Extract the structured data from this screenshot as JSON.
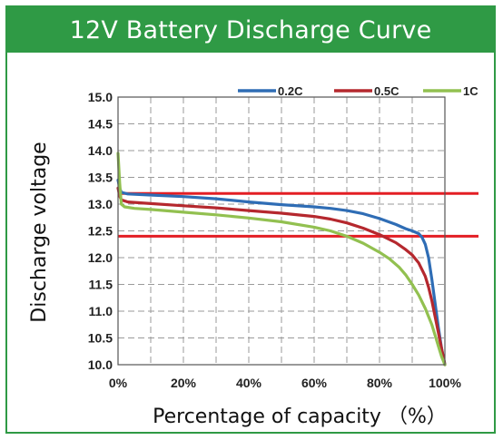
{
  "chart_data": {
    "type": "line",
    "title": "12V Battery Discharge Curve",
    "xlabel": "Percentage of capacity （%）",
    "ylabel": "Discharge voltage",
    "xlim": [
      0,
      100
    ],
    "ylim": [
      10.0,
      15.0
    ],
    "x_ticks": [
      "0%",
      "20%",
      "40%",
      "60%",
      "80%",
      "100%"
    ],
    "x_tick_values": [
      0,
      20,
      40,
      60,
      80,
      100
    ],
    "y_ticks": [
      "15.0",
      "14.5",
      "14.0",
      "13.5",
      "13.0",
      "12.5",
      "12.0",
      "11.5",
      "11.0",
      "10.5",
      "10.0"
    ],
    "y_tick_values": [
      15.0,
      14.5,
      14.0,
      13.5,
      13.0,
      12.5,
      12.0,
      11.5,
      11.0,
      10.5,
      10.0
    ],
    "grid": true,
    "grid_style": "dashed",
    "legend_position": "top-right",
    "reference_lines": [
      {
        "y": 13.2,
        "color": "#e31e24"
      },
      {
        "y": 12.4,
        "color": "#e31e24"
      }
    ],
    "series": [
      {
        "name": "0.2C",
        "color": "#2f6db5",
        "x": [
          0,
          0.5,
          1,
          3,
          10,
          20,
          30,
          40,
          50,
          60,
          65,
          70,
          75,
          80,
          85,
          88,
          90,
          92,
          93,
          94,
          95,
          96,
          97,
          98,
          99,
          100
        ],
        "y": [
          13.45,
          13.3,
          13.22,
          13.19,
          13.17,
          13.14,
          13.1,
          13.04,
          12.99,
          12.95,
          12.92,
          12.88,
          12.82,
          12.73,
          12.62,
          12.54,
          12.5,
          12.45,
          12.38,
          12.25,
          12.0,
          11.6,
          11.15,
          10.7,
          10.3,
          10.0
        ]
      },
      {
        "name": "0.5C",
        "color": "#b5282e",
        "x": [
          0,
          0.5,
          1,
          3,
          10,
          20,
          30,
          40,
          50,
          60,
          65,
          70,
          75,
          80,
          85,
          88,
          90,
          92,
          94,
          95,
          96,
          97,
          98,
          99,
          100
        ],
        "y": [
          13.3,
          13.15,
          13.08,
          13.04,
          13.01,
          12.97,
          12.93,
          12.88,
          12.83,
          12.77,
          12.72,
          12.65,
          12.55,
          12.43,
          12.28,
          12.15,
          12.05,
          11.9,
          11.65,
          11.45,
          11.2,
          10.9,
          10.6,
          10.3,
          10.0
        ]
      },
      {
        "name": "1C",
        "color": "#92c050",
        "x": [
          0,
          0.5,
          1,
          2,
          5,
          10,
          20,
          30,
          40,
          50,
          60,
          65,
          70,
          75,
          80,
          83,
          86,
          88,
          90,
          92,
          94,
          95,
          96,
          97,
          98,
          99,
          100
        ],
        "y": [
          13.95,
          13.4,
          13.0,
          12.95,
          12.92,
          12.9,
          12.85,
          12.8,
          12.74,
          12.67,
          12.57,
          12.5,
          12.4,
          12.27,
          12.1,
          11.98,
          11.82,
          11.68,
          11.5,
          11.3,
          11.05,
          10.9,
          10.75,
          10.55,
          10.35,
          10.15,
          10.0
        ]
      }
    ]
  }
}
